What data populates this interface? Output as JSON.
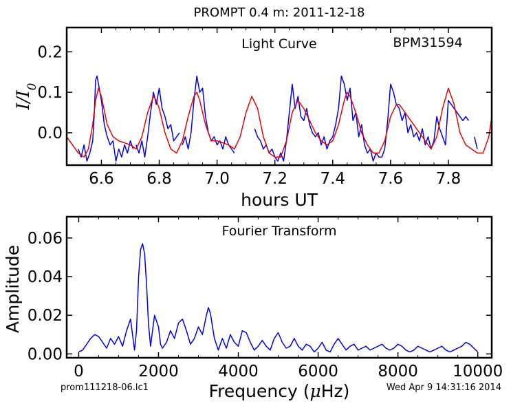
{
  "header": {
    "title": "PROMPT 0.4 m:  2011-12-18"
  },
  "footer": {
    "left": "prom111218-06.lc1",
    "right": "Wed Apr  9 14:31:16 2014"
  },
  "chart_data": [
    {
      "type": "line",
      "title": "Light Curve",
      "annotation": "BPM31594",
      "xlabel": "hours UT",
      "ylabel": "I/I0",
      "ylabel_sub": "0",
      "xlim": [
        6.48,
        7.95
      ],
      "ylim": [
        -0.08,
        0.26
      ],
      "xticks": [
        6.6,
        6.8,
        7.0,
        7.2,
        7.4,
        7.6,
        7.8
      ],
      "xtick_labels": [
        "6.6",
        "6.8",
        "7.0",
        "7.2",
        "7.4",
        "7.6",
        "7.8"
      ],
      "yticks": [
        0.0,
        0.1,
        0.2
      ],
      "ytick_labels": [
        "0.0",
        "0.1",
        "0.2"
      ],
      "grid": false,
      "series": [
        {
          "color": "#0000ee",
          "segments": [
            {
              "x": [
                6.52,
                6.53,
                6.54,
                6.55,
                6.56,
                6.57,
                6.575,
                6.58,
                6.585,
                6.59,
                6.6,
                6.61,
                6.62,
                6.63,
                6.64,
                6.65,
                6.66,
                6.67,
                6.68,
                6.69,
                6.7,
                6.71
              ],
              "y": [
                -0.04,
                -0.06,
                -0.03,
                -0.07,
                -0.05,
                -0.02,
                0.04,
                0.13,
                0.14,
                0.12,
                0.08,
                0.02,
                -0.01,
                -0.03,
                -0.02,
                -0.07,
                -0.04,
                -0.06,
                -0.03,
                -0.05,
                -0.02,
                -0.04
              ]
            },
            {
              "x": [
                6.72,
                6.73,
                6.74,
                6.75,
                6.76,
                6.77,
                6.78,
                6.79,
                6.8,
                6.81,
                6.82,
                6.83,
                6.84,
                6.85,
                6.86,
                6.87
              ],
              "y": [
                -0.03,
                -0.05,
                -0.02,
                -0.06,
                -0.01,
                0.05,
                0.1,
                0.07,
                0.11,
                0.06,
                0.04,
                0.01,
                0.02,
                -0.02,
                -0.01,
                0.0
              ]
            },
            {
              "x": [
                6.88,
                6.89,
                6.9,
                6.91,
                6.92,
                6.93,
                6.94,
                6.95,
                6.96,
                6.97,
                6.98,
                6.99,
                7.0,
                7.01,
                7.02,
                7.03,
                7.04,
                7.05,
                7.06
              ],
              "y": [
                -0.03,
                -0.01,
                -0.04,
                0.0,
                0.08,
                0.14,
                0.1,
                0.11,
                0.04,
                0.0,
                -0.02,
                -0.01,
                -0.03,
                -0.02,
                -0.04,
                -0.01,
                -0.03,
                -0.04,
                -0.05
              ]
            },
            {
              "x": [
                7.13,
                7.14,
                7.15,
                7.16,
                7.17,
                7.18,
                7.19,
                7.2,
                7.21,
                7.22,
                7.23,
                7.24,
                7.25,
                7.26,
                7.27,
                7.28,
                7.29,
                7.3,
                7.31,
                7.32,
                7.33,
                7.34,
                7.35,
                7.36,
                7.37,
                7.38,
                7.39,
                7.4,
                7.41,
                7.42,
                7.43,
                7.44,
                7.45,
                7.46,
                7.47,
                7.48,
                7.49,
                7.5,
                7.51,
                7.52,
                7.53,
                7.54,
                7.55,
                7.56,
                7.57,
                7.58,
                7.59,
                7.6,
                7.61,
                7.62,
                7.63,
                7.64,
                7.65,
                7.66,
                7.67,
                7.68,
                7.69,
                7.7,
                7.71,
                7.72,
                7.73,
                7.74,
                7.75,
                7.76,
                7.77,
                7.78,
                7.79,
                7.8,
                7.81,
                7.82,
                7.83,
                7.84,
                7.85,
                7.86,
                7.87
              ],
              "y": [
                0.01,
                -0.01,
                -0.02,
                -0.04,
                -0.03,
                -0.05,
                -0.04,
                -0.06,
                -0.07,
                -0.05,
                -0.07,
                -0.02,
                0.05,
                0.12,
                0.06,
                0.09,
                0.04,
                0.03,
                0.06,
                0.02,
                0.0,
                -0.01,
                0.0,
                -0.03,
                -0.01,
                -0.04,
                -0.02,
                -0.01,
                0.02,
                0.06,
                0.14,
                0.12,
                0.08,
                0.11,
                0.03,
                0.05,
                -0.01,
                0.02,
                -0.03,
                -0.05,
                -0.04,
                -0.07,
                -0.05,
                -0.06,
                -0.06,
                -0.04,
                0.03,
                0.12,
                0.1,
                0.07,
                0.06,
                0.03,
                0.05,
                0.0,
                0.02,
                -0.01,
                0.0,
                -0.02,
                0.01,
                -0.03,
                -0.01,
                -0.04,
                -0.02,
                0.04,
                0.01,
                -0.01,
                -0.03,
                0.08,
                0.07,
                0.06,
                0.05,
                0.04,
                0.03,
                0.04,
                0.03
              ]
            },
            {
              "x": [
                7.89,
                7.9
              ],
              "y": [
                -0.01,
                -0.04
              ]
            }
          ]
        },
        {
          "color": "#ee0000",
          "x": [
            6.48,
            6.5,
            6.52,
            6.54,
            6.555,
            6.57,
            6.58,
            6.59,
            6.6,
            6.62,
            6.64,
            6.66,
            6.7,
            6.72,
            6.74,
            6.76,
            6.78,
            6.79,
            6.8,
            6.82,
            6.84,
            6.86,
            6.88,
            6.9,
            6.92,
            6.93,
            6.94,
            6.96,
            6.98,
            7.0,
            7.04,
            7.06,
            7.08,
            7.1,
            7.12,
            7.14,
            7.16,
            7.18,
            7.2,
            7.22,
            7.24,
            7.26,
            7.28,
            7.29,
            7.3,
            7.32,
            7.34,
            7.36,
            7.38,
            7.4,
            7.42,
            7.44,
            7.45,
            7.46,
            7.48,
            7.5,
            7.52,
            7.54,
            7.56,
            7.58,
            7.6,
            7.62,
            7.63,
            7.64,
            7.66,
            7.68,
            7.7,
            7.72,
            7.74,
            7.76,
            7.78,
            7.8,
            7.82,
            7.84,
            7.86,
            7.88,
            7.9,
            7.92,
            7.94,
            7.95
          ],
          "y": [
            -0.01,
            -0.03,
            -0.05,
            -0.06,
            -0.04,
            0.02,
            0.08,
            0.11,
            0.09,
            0.02,
            -0.01,
            -0.02,
            -0.03,
            -0.04,
            -0.01,
            0.05,
            0.09,
            0.08,
            0.06,
            0.0,
            -0.04,
            -0.05,
            -0.02,
            0.04,
            0.09,
            0.1,
            0.08,
            0.02,
            -0.02,
            -0.02,
            -0.03,
            -0.04,
            -0.01,
            0.05,
            0.09,
            0.06,
            -0.01,
            -0.05,
            -0.06,
            -0.06,
            -0.02,
            0.05,
            0.08,
            0.07,
            0.06,
            0.03,
            0.0,
            -0.02,
            -0.03,
            -0.02,
            0.02,
            0.08,
            0.1,
            0.09,
            0.05,
            0.0,
            -0.03,
            -0.05,
            -0.05,
            -0.02,
            0.04,
            0.07,
            0.07,
            0.06,
            0.04,
            0.02,
            0.0,
            -0.02,
            -0.04,
            -0.01,
            0.06,
            0.11,
            0.07,
            0.0,
            -0.03,
            -0.04,
            -0.05,
            -0.05,
            -0.01,
            0.04
          ]
        }
      ]
    },
    {
      "type": "line",
      "title": "Fourier Transform",
      "xlabel": "Frequency (μHz)",
      "xlabel_greek": "μ",
      "xlabel_pre": "Frequency (",
      "xlabel_post": "Hz)",
      "ylabel": "Amplitude",
      "xlim": [
        -300,
        10350
      ],
      "ylim": [
        -0.002,
        0.071
      ],
      "xticks": [
        0,
        2000,
        4000,
        6000,
        8000,
        10000
      ],
      "xtick_labels": [
        "0",
        "2000",
        "4000",
        "6000",
        "8000",
        "10000"
      ],
      "yticks": [
        0.0,
        0.02,
        0.04,
        0.06
      ],
      "ytick_labels": [
        "0.00",
        "0.02",
        "0.04",
        "0.06"
      ],
      "grid": false,
      "series": [
        {
          "color": "#0000ee",
          "x": [
            0,
            100,
            200,
            300,
            400,
            500,
            600,
            700,
            800,
            900,
            1000,
            1100,
            1200,
            1300,
            1350,
            1400,
            1450,
            1500,
            1550,
            1600,
            1650,
            1700,
            1750,
            1800,
            1850,
            1900,
            2000,
            2050,
            2100,
            2200,
            2300,
            2400,
            2500,
            2600,
            2700,
            2800,
            2900,
            3000,
            3100,
            3200,
            3250,
            3300,
            3400,
            3500,
            3600,
            3700,
            3800,
            3900,
            4000,
            4100,
            4200,
            4300,
            4400,
            4500,
            4600,
            4700,
            4800,
            4900,
            5000,
            5100,
            5200,
            5300,
            5400,
            5500,
            5600,
            5700,
            5800,
            5900,
            6000,
            6100,
            6200,
            6300,
            6400,
            6500,
            6600,
            6700,
            6800,
            6900,
            7000,
            7100,
            7200,
            7300,
            7400,
            7500,
            7600,
            7700,
            7800,
            7900,
            8000,
            8100,
            8200,
            8300,
            8400,
            8500,
            8600,
            8700,
            8800,
            8900,
            9000,
            9100,
            9200,
            9300,
            9400,
            9500,
            9600,
            9700,
            9800,
            9900,
            10000
          ],
          "y": [
            0.001,
            0.002,
            0.005,
            0.008,
            0.01,
            0.009,
            0.006,
            0.003,
            0.008,
            0.005,
            0.009,
            0.004,
            0.012,
            0.018,
            0.01,
            0.002,
            0.012,
            0.04,
            0.054,
            0.057,
            0.052,
            0.036,
            0.015,
            0.004,
            0.012,
            0.02,
            0.014,
            0.005,
            0.003,
            0.006,
            0.012,
            0.008,
            0.016,
            0.018,
            0.012,
            0.005,
            0.008,
            0.014,
            0.01,
            0.02,
            0.024,
            0.021,
            0.008,
            0.002,
            0.008,
            0.003,
            0.01,
            0.006,
            0.004,
            0.012,
            0.011,
            0.006,
            0.002,
            0.004,
            0.007,
            0.004,
            0.002,
            0.008,
            0.011,
            0.006,
            0.003,
            0.004,
            0.008,
            0.004,
            0.002,
            0.005,
            0.004,
            0.001,
            0.003,
            0.006,
            0.002,
            0.001,
            0.005,
            0.008,
            0.005,
            0.002,
            0.004,
            0.005,
            0.002,
            0.003,
            0.004,
            0.002,
            0.003,
            0.004,
            0.005,
            0.003,
            0.002,
            0.003,
            0.005,
            0.004,
            0.002,
            0.001,
            0.002,
            0.004,
            0.003,
            0.002,
            0.001,
            0.002,
            0.003,
            0.004,
            0.002,
            0.001,
            0.002,
            0.003,
            0.004,
            0.006,
            0.005,
            0.003,
            0.001
          ]
        }
      ]
    }
  ]
}
